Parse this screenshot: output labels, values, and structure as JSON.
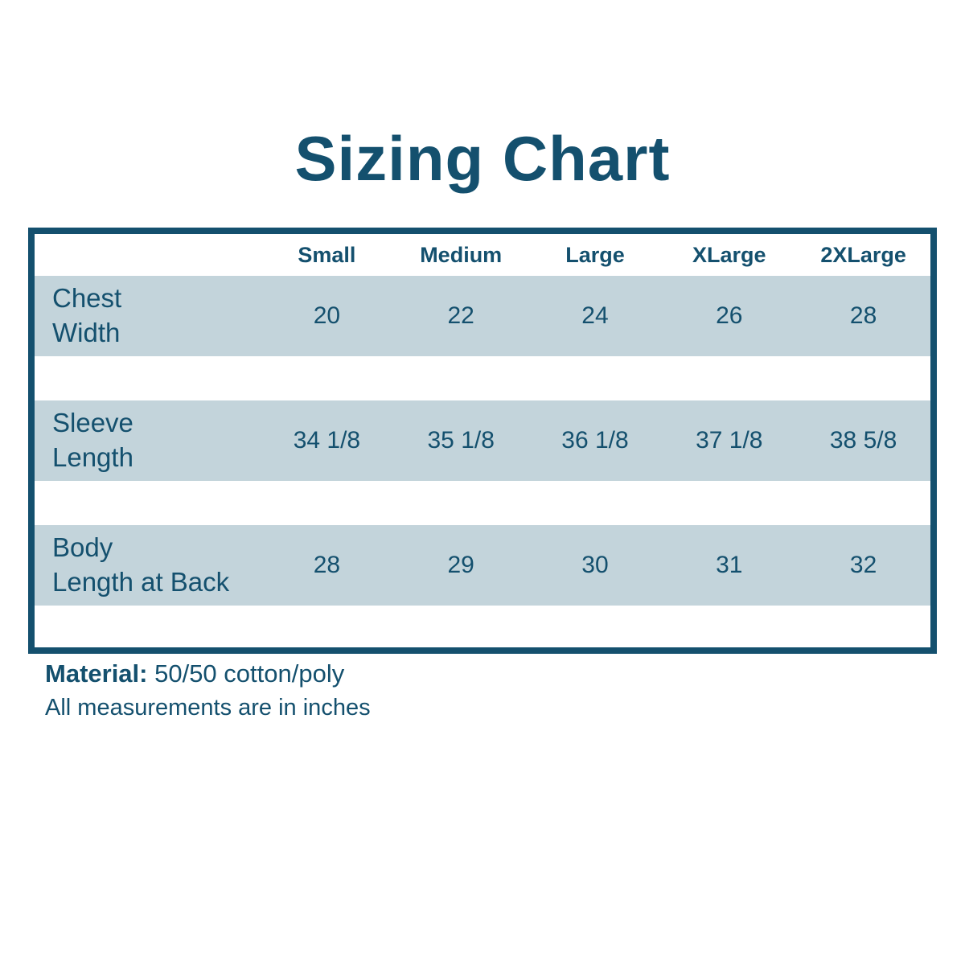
{
  "page": {
    "title": "Sizing Chart"
  },
  "colors": {
    "text_teal": "#14506e",
    "border_teal": "#14506e",
    "row_blue": "#c3d4db",
    "background": "#ffffff"
  },
  "table": {
    "columns": [
      "Small",
      "Medium",
      "Large",
      "XLarge",
      "2XLarge"
    ],
    "rows": [
      {
        "label": "Chest\nWidth",
        "values": [
          "20",
          "22",
          "24",
          "26",
          "28"
        ]
      },
      {
        "label": "Sleeve\nLength",
        "values": [
          "34 1/8",
          "35 1/8",
          "36 1/8",
          "37 1/8",
          "38 5/8"
        ]
      },
      {
        "label": "Body\nLength at Back",
        "values": [
          "28",
          "29",
          "30",
          "31",
          "32"
        ]
      }
    ]
  },
  "footer": {
    "material_label": "Material:",
    "material_value": " 50/50 cotton/poly",
    "note": "All measurements are in inches"
  },
  "chart_data": {
    "type": "table",
    "title": "Sizing Chart",
    "columns": [
      "Small",
      "Medium",
      "Large",
      "XLarge",
      "2XLarge"
    ],
    "rows": [
      {
        "label": "Chest Width",
        "values": [
          "20",
          "22",
          "24",
          "26",
          "28"
        ]
      },
      {
        "label": "Sleeve Length",
        "values": [
          "34 1/8",
          "35 1/8",
          "36 1/8",
          "37 1/8",
          "38 5/8"
        ]
      },
      {
        "label": "Body Length at Back",
        "values": [
          "28",
          "29",
          "30",
          "31",
          "32"
        ]
      }
    ],
    "notes": [
      "Material: 50/50 cotton/poly",
      "All measurements are in inches"
    ]
  }
}
